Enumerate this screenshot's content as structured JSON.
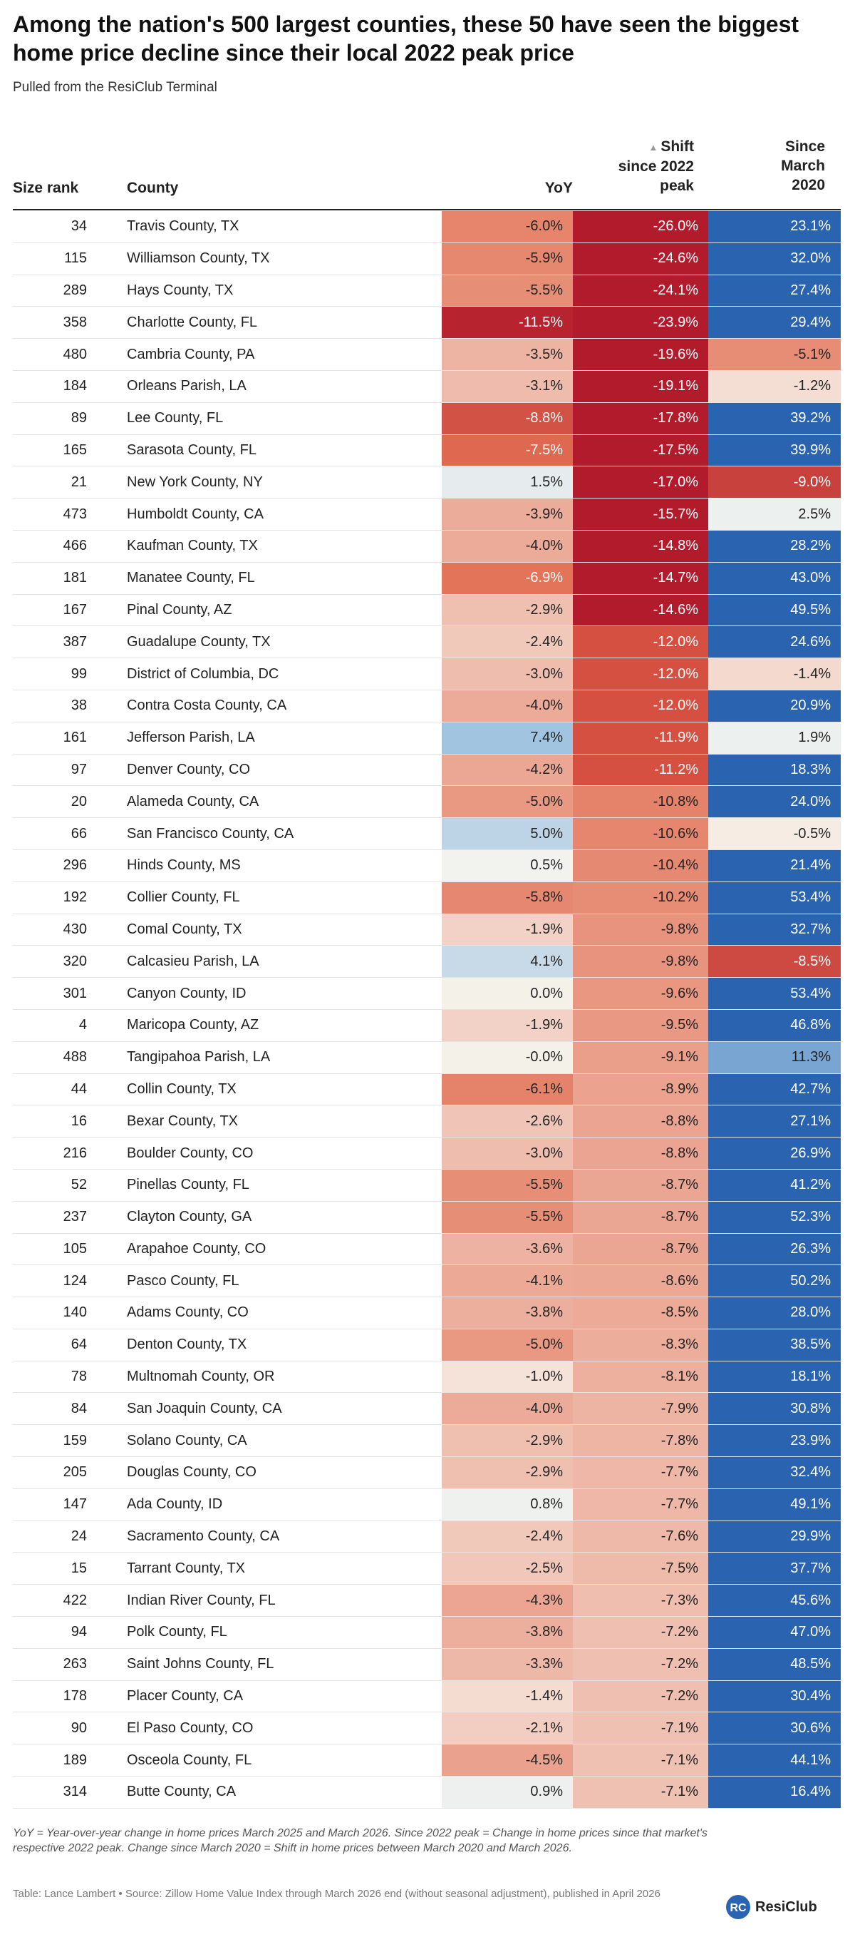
{
  "title": "Among the nation's 500 largest counties, these 50 have seen the biggest home price decline since their local 2022 peak price",
  "subtitle": "Pulled from the ResiClub Terminal",
  "headers": {
    "size_rank": "Size rank",
    "county": "County",
    "yoy": "YoY",
    "shift": "Shift\nsince 2022\npeak",
    "since": "Since\nMarch\n2020"
  },
  "sort_arrow": "▲",
  "footnote": "YoY = Year-over-year change in home prices March 2025 and March 2026. Since 2022 peak = Change in home prices since that market's respective 2022 peak. Change since March 2020 = Shift in home prices between March 2020 and March 2026.",
  "credit": "Table: Lance Lambert • Source: Zillow Home Value Index through March 2026 end (without seasonal adjustment), published in April 2026",
  "logo": {
    "letters": "RC",
    "text": "ResiClub"
  },
  "colors": {
    "strong_red": "#b31b2c",
    "strong_blue": "#2a64b0",
    "pos_blue_light": "#c9dcee"
  },
  "chart_data": {
    "type": "table",
    "columns": [
      "Size rank",
      "County",
      "YoY",
      "Shift since 2022 peak",
      "Since March 2020"
    ],
    "rows": [
      {
        "rank": "34",
        "county": "Travis County, TX",
        "yoy": "-6.0%",
        "shift": "-26.0%",
        "since": "23.1%"
      },
      {
        "rank": "115",
        "county": "Williamson County, TX",
        "yoy": "-5.9%",
        "shift": "-24.6%",
        "since": "32.0%"
      },
      {
        "rank": "289",
        "county": "Hays County, TX",
        "yoy": "-5.5%",
        "shift": "-24.1%",
        "since": "27.4%"
      },
      {
        "rank": "358",
        "county": "Charlotte County, FL",
        "yoy": "-11.5%",
        "shift": "-23.9%",
        "since": "29.4%"
      },
      {
        "rank": "480",
        "county": "Cambria County, PA",
        "yoy": "-3.5%",
        "shift": "-19.6%",
        "since": "-5.1%"
      },
      {
        "rank": "184",
        "county": "Orleans Parish, LA",
        "yoy": "-3.1%",
        "shift": "-19.1%",
        "since": "-1.2%"
      },
      {
        "rank": "89",
        "county": "Lee County, FL",
        "yoy": "-8.8%",
        "shift": "-17.8%",
        "since": "39.2%"
      },
      {
        "rank": "165",
        "county": "Sarasota County, FL",
        "yoy": "-7.5%",
        "shift": "-17.5%",
        "since": "39.9%"
      },
      {
        "rank": "21",
        "county": "New York County, NY",
        "yoy": "1.5%",
        "shift": "-17.0%",
        "since": "-9.0%"
      },
      {
        "rank": "473",
        "county": "Humboldt County, CA",
        "yoy": "-3.9%",
        "shift": "-15.7%",
        "since": "2.5%"
      },
      {
        "rank": "466",
        "county": "Kaufman County, TX",
        "yoy": "-4.0%",
        "shift": "-14.8%",
        "since": "28.2%"
      },
      {
        "rank": "181",
        "county": "Manatee County, FL",
        "yoy": "-6.9%",
        "shift": "-14.7%",
        "since": "43.0%"
      },
      {
        "rank": "167",
        "county": "Pinal County, AZ",
        "yoy": "-2.9%",
        "shift": "-14.6%",
        "since": "49.5%"
      },
      {
        "rank": "387",
        "county": "Guadalupe County, TX",
        "yoy": "-2.4%",
        "shift": "-12.0%",
        "since": "24.6%"
      },
      {
        "rank": "99",
        "county": "District of Columbia, DC",
        "yoy": "-3.0%",
        "shift": "-12.0%",
        "since": "-1.4%"
      },
      {
        "rank": "38",
        "county": "Contra Costa County, CA",
        "yoy": "-4.0%",
        "shift": "-12.0%",
        "since": "20.9%"
      },
      {
        "rank": "161",
        "county": "Jefferson Parish, LA",
        "yoy": "7.4%",
        "shift": "-11.9%",
        "since": "1.9%"
      },
      {
        "rank": "97",
        "county": "Denver County, CO",
        "yoy": "-4.2%",
        "shift": "-11.2%",
        "since": "18.3%"
      },
      {
        "rank": "20",
        "county": "Alameda County, CA",
        "yoy": "-5.0%",
        "shift": "-10.8%",
        "since": "24.0%"
      },
      {
        "rank": "66",
        "county": "San Francisco County, CA",
        "yoy": "5.0%",
        "shift": "-10.6%",
        "since": "-0.5%"
      },
      {
        "rank": "296",
        "county": "Hinds County, MS",
        "yoy": "0.5%",
        "shift": "-10.4%",
        "since": "21.4%"
      },
      {
        "rank": "192",
        "county": "Collier County, FL",
        "yoy": "-5.8%",
        "shift": "-10.2%",
        "since": "53.4%"
      },
      {
        "rank": "430",
        "county": "Comal County, TX",
        "yoy": "-1.9%",
        "shift": "-9.8%",
        "since": "32.7%"
      },
      {
        "rank": "320",
        "county": "Calcasieu Parish, LA",
        "yoy": "4.1%",
        "shift": "-9.8%",
        "since": "-8.5%"
      },
      {
        "rank": "301",
        "county": "Canyon County, ID",
        "yoy": "0.0%",
        "shift": "-9.6%",
        "since": "53.4%"
      },
      {
        "rank": "4",
        "county": "Maricopa County, AZ",
        "yoy": "-1.9%",
        "shift": "-9.5%",
        "since": "46.8%"
      },
      {
        "rank": "488",
        "county": "Tangipahoa Parish, LA",
        "yoy": "-0.0%",
        "shift": "-9.1%",
        "since": "11.3%"
      },
      {
        "rank": "44",
        "county": "Collin County, TX",
        "yoy": "-6.1%",
        "shift": "-8.9%",
        "since": "42.7%"
      },
      {
        "rank": "16",
        "county": "Bexar County, TX",
        "yoy": "-2.6%",
        "shift": "-8.8%",
        "since": "27.1%"
      },
      {
        "rank": "216",
        "county": "Boulder County, CO",
        "yoy": "-3.0%",
        "shift": "-8.8%",
        "since": "26.9%"
      },
      {
        "rank": "52",
        "county": "Pinellas County, FL",
        "yoy": "-5.5%",
        "shift": "-8.7%",
        "since": "41.2%"
      },
      {
        "rank": "237",
        "county": "Clayton County, GA",
        "yoy": "-5.5%",
        "shift": "-8.7%",
        "since": "52.3%"
      },
      {
        "rank": "105",
        "county": "Arapahoe County, CO",
        "yoy": "-3.6%",
        "shift": "-8.7%",
        "since": "26.3%"
      },
      {
        "rank": "124",
        "county": "Pasco County, FL",
        "yoy": "-4.1%",
        "shift": "-8.6%",
        "since": "50.2%"
      },
      {
        "rank": "140",
        "county": "Adams County, CO",
        "yoy": "-3.8%",
        "shift": "-8.5%",
        "since": "28.0%"
      },
      {
        "rank": "64",
        "county": "Denton County, TX",
        "yoy": "-5.0%",
        "shift": "-8.3%",
        "since": "38.5%"
      },
      {
        "rank": "78",
        "county": "Multnomah County, OR",
        "yoy": "-1.0%",
        "shift": "-8.1%",
        "since": "18.1%"
      },
      {
        "rank": "84",
        "county": "San Joaquin County, CA",
        "yoy": "-4.0%",
        "shift": "-7.9%",
        "since": "30.8%"
      },
      {
        "rank": "159",
        "county": "Solano County, CA",
        "yoy": "-2.9%",
        "shift": "-7.8%",
        "since": "23.9%"
      },
      {
        "rank": "205",
        "county": "Douglas County, CO",
        "yoy": "-2.9%",
        "shift": "-7.7%",
        "since": "32.4%"
      },
      {
        "rank": "147",
        "county": "Ada County, ID",
        "yoy": "0.8%",
        "shift": "-7.7%",
        "since": "49.1%"
      },
      {
        "rank": "24",
        "county": "Sacramento County, CA",
        "yoy": "-2.4%",
        "shift": "-7.6%",
        "since": "29.9%"
      },
      {
        "rank": "15",
        "county": "Tarrant County, TX",
        "yoy": "-2.5%",
        "shift": "-7.5%",
        "since": "37.7%"
      },
      {
        "rank": "422",
        "county": "Indian River County, FL",
        "yoy": "-4.3%",
        "shift": "-7.3%",
        "since": "45.6%"
      },
      {
        "rank": "94",
        "county": "Polk County, FL",
        "yoy": "-3.8%",
        "shift": "-7.2%",
        "since": "47.0%"
      },
      {
        "rank": "263",
        "county": "Saint Johns County, FL",
        "yoy": "-3.3%",
        "shift": "-7.2%",
        "since": "48.5%"
      },
      {
        "rank": "178",
        "county": "Placer County, CA",
        "yoy": "-1.4%",
        "shift": "-7.2%",
        "since": "30.4%"
      },
      {
        "rank": "90",
        "county": "El Paso County, CO",
        "yoy": "-2.1%",
        "shift": "-7.1%",
        "since": "30.6%"
      },
      {
        "rank": "189",
        "county": "Osceola County, FL",
        "yoy": "-4.5%",
        "shift": "-7.1%",
        "since": "44.1%"
      },
      {
        "rank": "314",
        "county": "Butte County, CA",
        "yoy": "0.9%",
        "shift": "-7.1%",
        "since": "16.4%"
      }
    ]
  }
}
